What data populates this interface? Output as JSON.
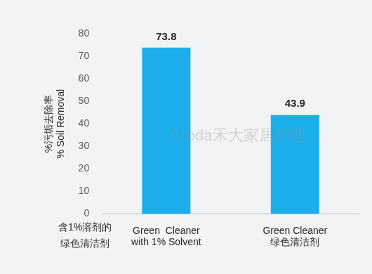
{
  "chart_data": {
    "type": "bar",
    "y_label": [
      "%污垢去除率",
      "% Soil Removal"
    ],
    "categories": [
      [
        "Green  Cleaner",
        "with 1% Solvent"
      ],
      [
        "Green Cleaner",
        "绿色清洁剂"
      ]
    ],
    "values": [
      73.8,
      43.9
    ],
    "color": "#1caeea",
    "ylim": [
      0,
      80
    ],
    "yticks": [
      0,
      10,
      20,
      30,
      40,
      50,
      60,
      70,
      80
    ],
    "grid": false,
    "data_labels": true,
    "annotations": [
      [
        "含1%溶剂的",
        "绿色清洁剂"
      ]
    ],
    "watermark": "Croda禾大家居护理"
  }
}
